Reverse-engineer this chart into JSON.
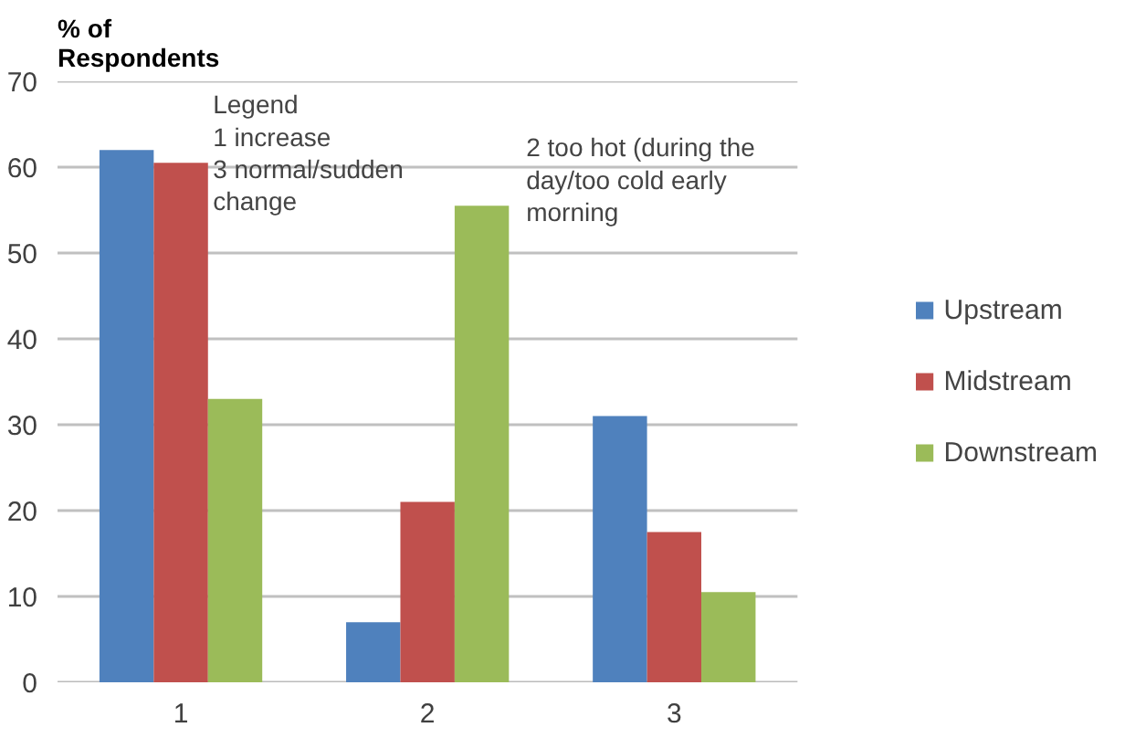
{
  "chart_data": {
    "type": "bar",
    "ylabel": "% of\nRespondents",
    "categories": [
      "1",
      "2",
      "3"
    ],
    "series": [
      {
        "name": "Upstream",
        "color": "#4f81bd",
        "values": [
          62,
          7,
          31
        ]
      },
      {
        "name": "Midstream",
        "color": "#c0504d",
        "values": [
          60.5,
          21,
          17.5
        ]
      },
      {
        "name": "Downstream",
        "color": "#9bbb59",
        "values": [
          33,
          55.5,
          10.5
        ]
      }
    ],
    "ylim": [
      0,
      70
    ],
    "yticks": [
      0,
      10,
      20,
      30,
      40,
      50,
      60,
      70
    ],
    "grid": "y",
    "legend": "right",
    "annotations": [
      "Legend\n1 increase\n3 normal/sudden\n    change",
      "2  too hot (during  the\n    day/too  cold early\n     morning"
    ]
  }
}
